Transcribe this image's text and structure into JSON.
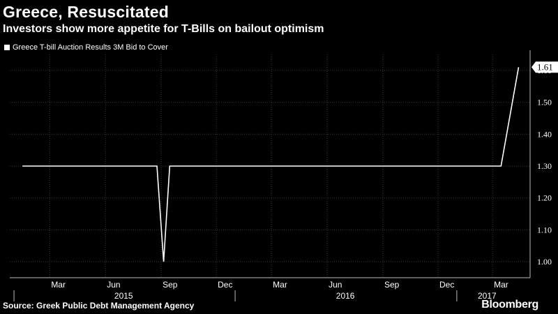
{
  "header": {
    "title": "Greece, Resuscitated",
    "subtitle": "Investors show more appetite for T-Bills on bailout optimism"
  },
  "footer": {
    "source": "Source: Greek Public Debt Management Agency",
    "brand": "Bloomberg"
  },
  "colors": {
    "background": "#000000",
    "line": "#ffffff",
    "grid": "#3a3a3a",
    "accent_text": "#ffffff"
  },
  "chart_data": {
    "type": "line",
    "title": "Greece, Resuscitated",
    "subtitle": "Investors show more appetite for T-Bills on bailout optimism",
    "xlabel": "",
    "ylabel": "",
    "ylim": [
      0.95,
      1.65
    ],
    "yticks": [
      1.0,
      1.1,
      1.2,
      1.3,
      1.4,
      1.5,
      1.6
    ],
    "ytick_labels": [
      "1.00",
      "1.10",
      "1.20",
      "1.30",
      "1.40",
      "1.50",
      "1.60"
    ],
    "x_month_ticks": [
      "Mar",
      "Jun",
      "Sep",
      "Dec",
      "Mar",
      "Jun",
      "Sep",
      "Dec",
      "Mar"
    ],
    "x_year_labels": [
      "2015",
      "2016",
      "2017"
    ],
    "grid": true,
    "legend_position": "top-left",
    "last_value_label": "1.61",
    "series": [
      {
        "name": "Greece T-bill Auction Results 3M Bid to Cover",
        "x": [
          "2015-01-15",
          "2015-08-25",
          "2015-09-05",
          "2015-09-15",
          "2017-03-15",
          "2017-04-13"
        ],
        "values": [
          1.3,
          1.3,
          1.0,
          1.3,
          1.3,
          1.61
        ]
      }
    ]
  }
}
